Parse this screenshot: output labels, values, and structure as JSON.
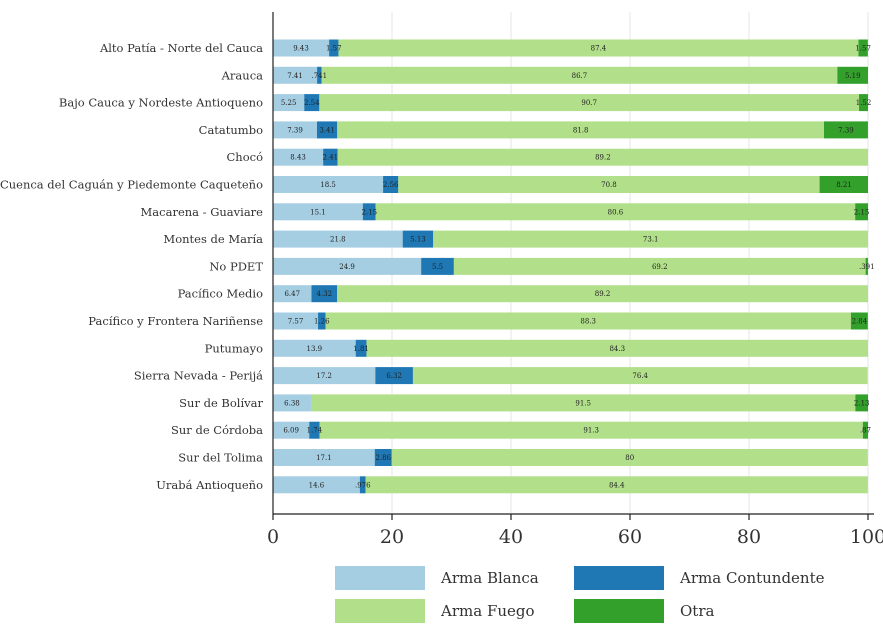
{
  "chart_data": {
    "type": "bar",
    "orientation": "horizontal",
    "stacked": true,
    "title": "",
    "xlabel": "",
    "ylabel": "",
    "xlim": [
      0,
      100
    ],
    "xticks": [
      0,
      20,
      40,
      60,
      80,
      100
    ],
    "grid": "vertical",
    "legend_position": "bottom",
    "categories": [
      "Alto Patía - Norte del Cauca",
      "Arauca",
      "Bajo Cauca y Nordeste Antioqueno",
      "Catatumbo",
      "Chocó",
      "Cuenca del Caguán y Piedemonte Caqueteño",
      "Macarena - Guaviare",
      "Montes de María",
      "No PDET",
      "Pacífico Medio",
      "Pacífico y Frontera Nariñense",
      "Putumayo",
      "Sierra Nevada - Perijá",
      "Sur de Bolívar",
      "Sur de Córdoba",
      "Sur del Tolima",
      "Urabá Antioqueño"
    ],
    "series": [
      {
        "name": "Arma Blanca",
        "color": "#a6cee3",
        "values": [
          9.43,
          7.41,
          5.25,
          7.39,
          8.43,
          18.5,
          15.1,
          21.8,
          24.9,
          6.47,
          7.57,
          13.9,
          17.2,
          6.38,
          6.09,
          17.1,
          14.6
        ],
        "labels": [
          "9.43",
          "7.41",
          "5.25",
          "7.39",
          "8.43",
          "18.5",
          "15.1",
          "21.8",
          "24.9",
          "6.47",
          "7.57",
          "13.9",
          "17.2",
          "6.38",
          "6.09",
          "17.1",
          "14.6"
        ]
      },
      {
        "name": "Arma Contundente",
        "color": "#1f78b4",
        "values": [
          1.57,
          0.741,
          2.54,
          3.41,
          2.41,
          2.56,
          2.15,
          5.13,
          5.5,
          4.32,
          1.26,
          1.81,
          6.32,
          0,
          1.74,
          2.86,
          0.976
        ],
        "labels": [
          "1.57",
          ".741",
          "2.54",
          "3.41",
          "2.41",
          "2.56",
          "2.15",
          "5.13",
          "5.5",
          "4.32",
          "1.26",
          "1.81",
          "6.32",
          "",
          "1.74",
          "2.86",
          ".976"
        ]
      },
      {
        "name": "Arma Fuego",
        "color": "#b2df8a",
        "values": [
          87.4,
          86.7,
          90.7,
          81.8,
          89.2,
          70.8,
          80.6,
          73.1,
          69.2,
          89.2,
          88.3,
          84.3,
          76.4,
          91.5,
          91.3,
          80,
          84.4
        ],
        "labels": [
          "87.4",
          "86.7",
          "90.7",
          "81.8",
          "89.2",
          "70.8",
          "80.6",
          "73.1",
          "69.2",
          "89.2",
          "88.3",
          "84.3",
          "76.4",
          "91.5",
          "91.3",
          "80",
          "84.4"
        ]
      },
      {
        "name": "Otra",
        "color": "#33a02c",
        "values": [
          1.57,
          5.19,
          1.52,
          7.39,
          0,
          8.21,
          2.15,
          0,
          0.391,
          0,
          2.84,
          0,
          0,
          2.13,
          0.87,
          0,
          0
        ],
        "labels": [
          "1.57",
          "5.19",
          "1.52",
          "7.39",
          "",
          "8.21",
          "2.15",
          "",
          ".391",
          "",
          "2.84",
          "",
          "",
          "2.13",
          ".87",
          "",
          ""
        ]
      }
    ]
  }
}
